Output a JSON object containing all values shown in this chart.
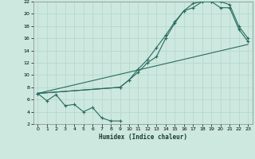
{
  "xlabel": "Humidex (Indice chaleur)",
  "bg_color": "#cce8df",
  "grid_color": "#b8d8d0",
  "line_color": "#2a6b5e",
  "xlim": [
    -0.5,
    23.5
  ],
  "ylim": [
    2,
    22
  ],
  "xticks": [
    0,
    1,
    2,
    3,
    4,
    5,
    6,
    7,
    8,
    9,
    10,
    11,
    12,
    13,
    14,
    15,
    16,
    17,
    18,
    19,
    20,
    21,
    22,
    23
  ],
  "yticks": [
    2,
    4,
    6,
    8,
    10,
    12,
    14,
    16,
    18,
    20,
    22
  ],
  "line1_x": [
    0,
    1,
    2,
    3,
    4,
    5,
    6,
    7,
    8,
    9
  ],
  "line1_y": [
    7.0,
    5.8,
    6.8,
    5.0,
    5.2,
    4.0,
    4.7,
    3.0,
    2.5,
    2.5
  ],
  "line2_x": [
    0,
    9,
    10,
    11,
    12,
    13,
    14,
    15,
    16,
    17,
    18,
    19,
    20,
    21,
    22,
    23
  ],
  "line2_y": [
    7.0,
    8.0,
    9.2,
    11.0,
    12.5,
    14.5,
    16.5,
    18.7,
    20.5,
    21.7,
    22.0,
    22.0,
    22.0,
    21.5,
    18.0,
    16.0
  ],
  "line3_x": [
    0,
    9,
    10,
    11,
    12,
    13,
    14,
    15,
    16,
    17,
    18,
    19,
    20,
    21,
    22,
    23
  ],
  "line3_y": [
    7.0,
    8.0,
    9.2,
    10.5,
    12.0,
    13.0,
    16.0,
    18.5,
    20.5,
    21.0,
    22.0,
    22.0,
    21.0,
    21.0,
    17.5,
    15.5
  ],
  "line4_x": [
    0,
    23
  ],
  "line4_y": [
    7.0,
    15.0
  ]
}
